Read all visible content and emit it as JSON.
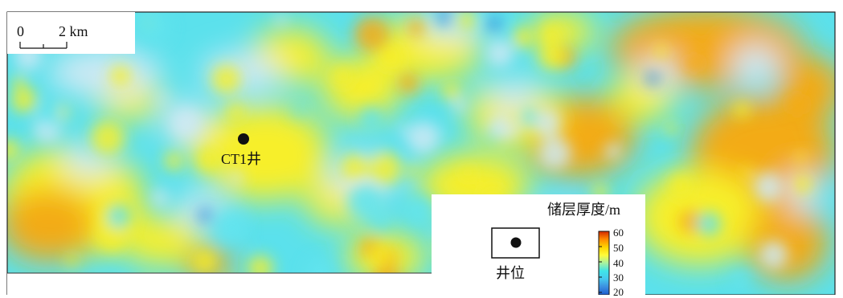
{
  "map": {
    "scale_bar": {
      "start_label": "0",
      "end_label": "2 km"
    },
    "well": {
      "label": "CT1井"
    },
    "legend": {
      "title": "储层厚度/m",
      "well_symbol_label": "井位",
      "colorbar": {
        "ticks": [
          "60",
          "50",
          "40",
          "30",
          "20"
        ],
        "min": 20,
        "max": 60,
        "colors": [
          "#d22a00",
          "#ff8a00",
          "#ffd400",
          "#fffb3a",
          "#a8f2a0",
          "#3fe4e8",
          "#46c8ee",
          "#3b8fe0",
          "#1f5ccf"
        ]
      }
    },
    "thickness_palette": {
      "low": "#cfe9f4",
      "cyan": "#62e4ee",
      "mid": "#f7ef2c",
      "high": "#f3ab17"
    }
  }
}
